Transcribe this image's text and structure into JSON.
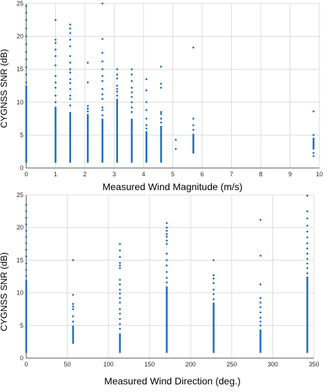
{
  "colors": {
    "marker": "#1f6fbd",
    "grid": "#dcdcdc",
    "axis": "#262626"
  },
  "chart_data": [
    {
      "type": "scatter",
      "title": "",
      "xlabel": "Measured Wind Magnitude (m/s)",
      "ylabel": "CYGNSS SNR (dB)",
      "xlim": [
        0,
        10
      ],
      "ylim": [
        0,
        25
      ],
      "xticks": [
        0,
        1,
        2,
        3,
        4,
        5,
        6,
        7,
        8,
        9,
        10
      ],
      "yticks": [
        0,
        5,
        10,
        15,
        20,
        25
      ],
      "grid": true,
      "columns": [
        {
          "x": 0,
          "dense": [
            0.8,
            12.5
          ],
          "sparse": [
            13.0,
            14.2,
            15.3,
            16.5,
            17.6,
            18.8,
            20.0,
            21.2,
            22.5,
            23.6,
            24.6
          ]
        },
        {
          "x": 1,
          "dense": [
            0.8,
            9.3
          ],
          "sparse": [
            10.0,
            11.0,
            12.2,
            13.0,
            14.0,
            15.6,
            17.0,
            18.0,
            19.0,
            19.5,
            22.5
          ]
        },
        {
          "x": 1.5,
          "dense": [
            0.8,
            8.5
          ],
          "sparse": [
            9.5,
            10.5,
            11.0,
            12.0,
            12.9,
            13.5,
            14.5,
            15.0,
            16.0,
            17.0,
            18.5,
            19.5,
            20.5,
            21.2,
            21.8
          ]
        },
        {
          "x": 2.1,
          "dense": [
            0.8,
            8.2
          ],
          "sparse": [
            8.6,
            9.0,
            9.4,
            13.0,
            16.0
          ]
        },
        {
          "x": 2.6,
          "dense": [
            0.8,
            7.5
          ],
          "sparse": [
            8.0,
            8.8,
            9.2,
            10.5,
            11.2,
            12.0,
            13.2,
            14.0,
            15.0,
            16.2,
            17.5,
            19.6,
            25.0
          ]
        },
        {
          "x": 3.1,
          "dense": [
            0.8,
            10.5
          ],
          "sparse": [
            11.0,
            11.6,
            12.0,
            12.5,
            13.6,
            14.2,
            15.0
          ]
        },
        {
          "x": 3.6,
          "dense": [
            0.8,
            7.5
          ],
          "sparse": [
            8.5,
            9.2,
            10.0,
            10.8,
            11.5,
            12.2,
            13.2,
            14.2,
            15.0
          ]
        },
        {
          "x": 4.1,
          "dense": [
            0.8,
            5.6
          ],
          "sparse": [
            6.0,
            6.5,
            7.5,
            8.8,
            10.0,
            11.8,
            13.5
          ]
        },
        {
          "x": 4.6,
          "dense": [
            0.8,
            6.4
          ],
          "sparse": [
            6.9,
            7.5,
            8.2,
            8.5,
            12.2,
            12.8,
            15.4
          ]
        },
        {
          "x": 5.1,
          "dense": null,
          "sparse": [
            2.9,
            4.3
          ]
        },
        {
          "x": 5.7,
          "dense": [
            2.2,
            5.2
          ],
          "sparse": [
            5.8,
            6.5,
            7.5,
            18.3
          ]
        },
        {
          "x": 9.8,
          "dense": [
            2.8,
            4.6
          ],
          "sparse": [
            1.8,
            2.3,
            5.0,
            8.6
          ]
        }
      ]
    },
    {
      "type": "scatter",
      "title": "",
      "xlabel": "Measured Wind Direction (deg.)",
      "ylabel": "CYGNSS SNR (dB)",
      "xlim": [
        0,
        350
      ],
      "ylim": [
        0,
        25
      ],
      "xticks": [
        0,
        50,
        100,
        150,
        200,
        250,
        300,
        350
      ],
      "yticks": [
        0,
        5,
        10,
        15,
        20,
        25
      ],
      "grid": true,
      "columns": [
        {
          "x": 0,
          "dense": [
            0.8,
            12.0
          ],
          "sparse": [
            12.6,
            13.5,
            14.5,
            15.6,
            16.6,
            17.6,
            18.6,
            19.5,
            20.5,
            21.5,
            22.5,
            23.5
          ]
        },
        {
          "x": 57,
          "dense": [
            2.2,
            5.0
          ],
          "sparse": [
            5.6,
            6.4,
            7.5,
            7.9,
            8.3,
            9.7,
            15.0
          ]
        },
        {
          "x": 114,
          "dense": [
            0.8,
            3.8
          ],
          "sparse": [
            4.5,
            5.2,
            6.0,
            6.8,
            7.5,
            8.5,
            9.2,
            9.9,
            10.5,
            11.3,
            12.0,
            13.8,
            14.2,
            14.6,
            15.5,
            16.5,
            17.5
          ]
        },
        {
          "x": 171,
          "dense": [
            0.8,
            11.0
          ],
          "sparse": [
            11.6,
            12.3,
            13.2,
            14.2,
            15.0,
            16.0,
            17.5,
            18.0,
            18.6,
            19.0,
            19.5,
            20.0,
            20.7
          ]
        },
        {
          "x": 228,
          "dense": [
            0.8,
            8.5
          ],
          "sparse": [
            9.0,
            9.8,
            10.5,
            11.5,
            12.2,
            12.7,
            15.0
          ]
        },
        {
          "x": 285,
          "dense": [
            0.8,
            4.4
          ],
          "sparse": [
            5.0,
            5.6,
            6.2,
            7.0,
            7.8,
            8.5,
            9.2,
            11.3,
            15.7,
            21.2
          ]
        },
        {
          "x": 342,
          "dense": [
            0.8,
            12.5
          ],
          "sparse": [
            13.0,
            13.8,
            14.5,
            15.2,
            16.0,
            16.8,
            17.6,
            18.5,
            19.4,
            20.3,
            21.4,
            22.5,
            24.9
          ]
        }
      ]
    }
  ]
}
